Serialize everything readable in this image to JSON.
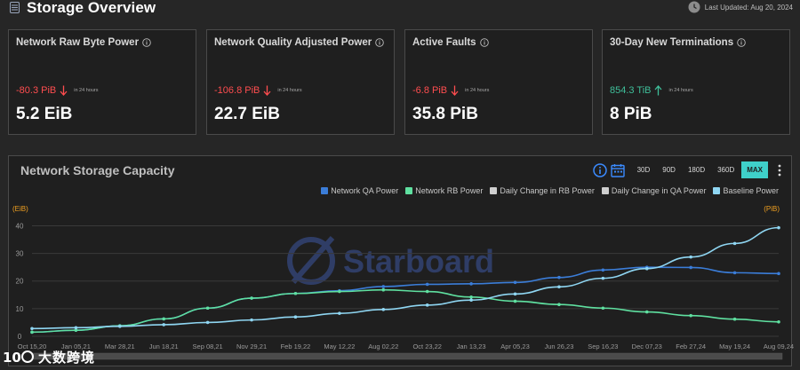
{
  "header": {
    "title": "Storage Overview",
    "title_icon": "database-icon",
    "last_updated": "Last Updated: Aug 20, 2024",
    "clock_icon": "clock-icon"
  },
  "cards": [
    {
      "title": "Network Raw Byte Power",
      "change": "-80.3 PiB",
      "direction": "down",
      "period": "in 24 hours",
      "value": "5.2 EiB"
    },
    {
      "title": "Network Quality Adjusted Power",
      "change": "-106.8 PiB",
      "direction": "down",
      "period": "in 24 hours",
      "value": "22.7 EiB"
    },
    {
      "title": "Active Faults",
      "change": "-6.8 PiB",
      "direction": "down",
      "period": "in 24 hours",
      "value": "35.8 PiB"
    },
    {
      "title": "30-Day New Terminations",
      "change": "854.3 TiB",
      "direction": "up",
      "period": "in 24 hours",
      "value": "8 PiB"
    }
  ],
  "panel": {
    "title": "Network Storage Capacity",
    "ranges": [
      "30D",
      "90D",
      "180D",
      "360D",
      "MAX"
    ],
    "active_range": "MAX",
    "watermark": "Starboard"
  },
  "colors": {
    "qa": "#3b7dd8",
    "rb": "#5fe0a0",
    "baseline": "#8fd6f2",
    "daily": "#cfcfcf",
    "down": "#ff4d4f",
    "up": "#3fbf9a",
    "active_range": "#3fd0c9"
  },
  "chart_data": {
    "type": "line",
    "left_unit": "(EiB)",
    "right_unit": "(PiB)",
    "y_ticks": [
      "0",
      "10",
      "20",
      "30",
      "40"
    ],
    "ylim": [
      0,
      44
    ],
    "x_ticks": [
      "Oct 15,20",
      "Jan 05,21",
      "Mar 28,21",
      "Jun 18,21",
      "Sep 08,21",
      "Nov 29,21",
      "Feb 19,22",
      "May 12,22",
      "Aug 02,22",
      "Oct 23,22",
      "Jan 13,23",
      "Apr 05,23",
      "Jun 26,23",
      "Sep 16,23",
      "Dec 07,23",
      "Feb 27,24",
      "May 19,24",
      "Aug 09,24"
    ],
    "legend": [
      {
        "name": "Network QA Power",
        "color": "#3b7dd8"
      },
      {
        "name": "Network RB Power",
        "color": "#5fe0a0"
      },
      {
        "name": "Daily Change in RB Power",
        "color": "#cfcfcf"
      },
      {
        "name": "Daily Change in QA Power",
        "color": "#cfcfcf"
      },
      {
        "name": "Baseline Power",
        "color": "#8fd6f2"
      }
    ],
    "x": [
      0,
      1,
      2,
      3,
      4,
      5,
      6,
      7,
      8,
      9,
      10,
      11,
      12,
      13,
      14,
      15,
      16,
      17
    ],
    "series": [
      {
        "name": "Network QA Power",
        "values": [
          1.5,
          2.2,
          3.8,
          6.3,
          10.2,
          13.8,
          15.5,
          16.5,
          18.0,
          18.8,
          19.0,
          19.5,
          21.3,
          24.0,
          25.0,
          24.9,
          23.0,
          22.7
        ]
      },
      {
        "name": "Network RB Power",
        "values": [
          1.5,
          2.2,
          3.8,
          6.3,
          10.2,
          13.8,
          15.5,
          16.2,
          16.8,
          16.2,
          14.2,
          12.7,
          11.5,
          10.2,
          8.8,
          7.5,
          6.2,
          5.2
        ]
      },
      {
        "name": "Baseline Power",
        "values": [
          2.8,
          3.1,
          3.6,
          4.2,
          5.0,
          5.9,
          7.0,
          8.3,
          9.7,
          11.3,
          13.1,
          15.3,
          17.9,
          21.0,
          24.5,
          28.7,
          33.6,
          39.3
        ]
      }
    ]
  }
}
